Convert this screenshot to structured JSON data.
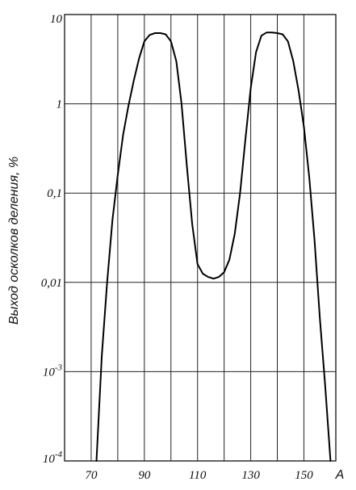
{
  "chart_data": {
    "type": "line",
    "xlabel": "A",
    "ylabel": "Выход осколков деления, %",
    "xlim": [
      60,
      162
    ],
    "ylim": [
      0.0001,
      10
    ],
    "y_scale": "log",
    "grid": true,
    "x_ticks": [
      {
        "value": 70,
        "label": "70"
      },
      {
        "value": 90,
        "label": "90"
      },
      {
        "value": 110,
        "label": "110"
      },
      {
        "value": 130,
        "label": "130"
      },
      {
        "value": 150,
        "label": "150"
      }
    ],
    "x_gridlines": [
      70,
      80,
      90,
      100,
      110,
      120,
      130,
      140,
      150
    ],
    "y_ticks": [
      {
        "value": 10,
        "label": "10"
      },
      {
        "value": 1,
        "label": "1"
      },
      {
        "value": 0.1,
        "label": "0,1"
      },
      {
        "value": 0.01,
        "label": "0,01"
      },
      {
        "value": 0.001,
        "label": "10",
        "exp": "-3"
      },
      {
        "value": 0.0001,
        "label": "10",
        "exp": "-4"
      }
    ],
    "series": [
      {
        "x": [
          72,
          74,
          76,
          78,
          80,
          82,
          84,
          86,
          88,
          90,
          92,
          94,
          96,
          98,
          100,
          102,
          104,
          106,
          108,
          110,
          112,
          114,
          116,
          118,
          120,
          122,
          124,
          126,
          128,
          130,
          132,
          134,
          136,
          138,
          140,
          142,
          144,
          146,
          148,
          150,
          152,
          154,
          156,
          158,
          160
        ],
        "y": [
          0.0001,
          0.0015,
          0.01,
          0.05,
          0.16,
          0.45,
          0.95,
          1.8,
          3.2,
          5.0,
          5.9,
          6.2,
          6.2,
          6.0,
          5.0,
          3.0,
          1.0,
          0.2,
          0.045,
          0.016,
          0.0125,
          0.0115,
          0.011,
          0.0115,
          0.013,
          0.018,
          0.035,
          0.1,
          0.4,
          1.5,
          3.8,
          5.8,
          6.3,
          6.3,
          6.2,
          6.0,
          5.0,
          3.0,
          1.4,
          0.55,
          0.15,
          0.03,
          0.004,
          0.0007,
          0.0001
        ]
      }
    ]
  }
}
